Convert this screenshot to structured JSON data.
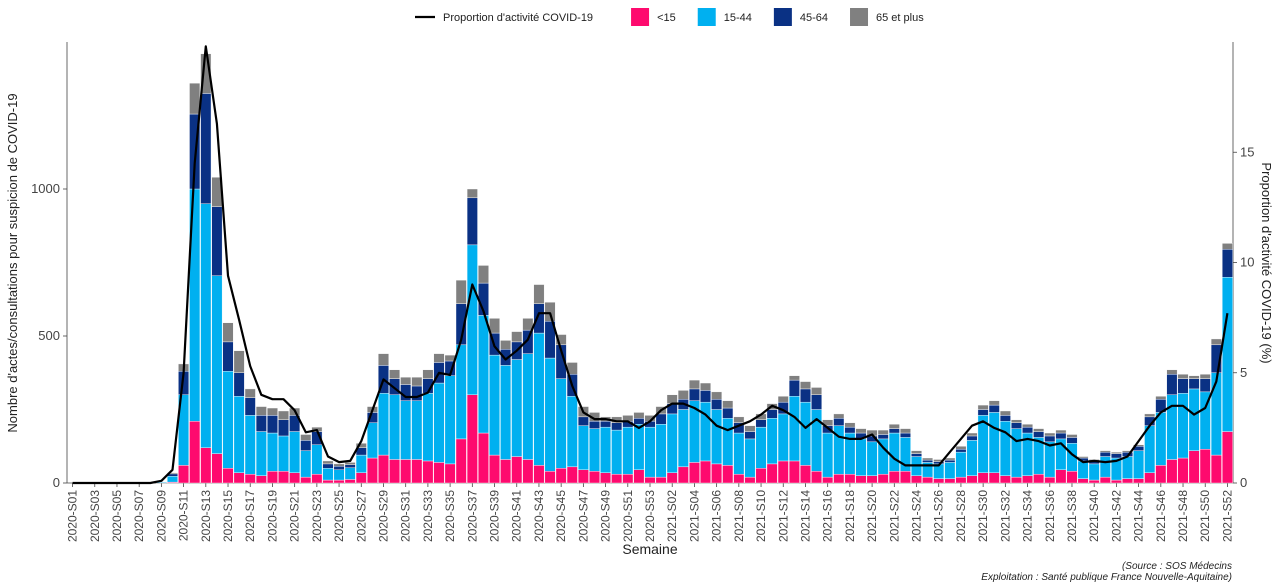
{
  "chart_data": {
    "type": "bar",
    "stacked": true,
    "x_label": "Semaine",
    "y_label": "Nombre d'actes/consultations pour suspicion de COVID-19",
    "y2_label": "Proportion d'activité COVID-19 (%)",
    "source": [
      "(Source : SOS Médecins",
      "Exploitation : Santé publique France Nouvelle-Aquitaine)"
    ],
    "ylim": [
      0,
      1500
    ],
    "yticks": [
      0,
      500,
      1000
    ],
    "y2lim": [
      0,
      20
    ],
    "y2ticks": [
      0,
      5,
      10,
      15
    ],
    "grid": false,
    "legend": "top",
    "categories": [
      "2020-S01",
      null,
      "2020-S03",
      null,
      "2020-S05",
      null,
      "2020-S07",
      null,
      "2020-S09",
      null,
      "2020-S11",
      null,
      "2020-S13",
      null,
      "2020-S15",
      null,
      "2020-S17",
      null,
      "2020-S19",
      null,
      "2020-S21",
      null,
      "2020-S23",
      null,
      "2020-S25",
      null,
      "2020-S27",
      null,
      "2020-S29",
      null,
      "2020-S31",
      null,
      "2020-S33",
      null,
      "2020-S35",
      null,
      "2020-S37",
      null,
      "2020-S39",
      null,
      "2020-S41",
      null,
      "2020-S43",
      null,
      "2020-S45",
      null,
      "2020-S47",
      null,
      "2020-S49",
      null,
      "2020-S51",
      null,
      "2020-S53",
      null,
      "2021-S02",
      null,
      "2021-S04",
      null,
      "2021-S06",
      null,
      "2021-S08",
      null,
      "2021-S10",
      null,
      "2021-S12",
      null,
      "2021-S14",
      null,
      "2021-S16",
      null,
      "2021-S18",
      null,
      "2021-S20",
      null,
      "2021-S22",
      null,
      "2021-S24",
      null,
      "2021-S26",
      null,
      "2021-S28",
      null,
      "2021-S30",
      null,
      "2021-S32",
      null,
      "2021-S34",
      null,
      "2021-S36",
      null,
      "2021-S38",
      null,
      "2021-S40",
      null,
      "2021-S42",
      null,
      "2021-S44",
      null,
      "2021-S46",
      null,
      "2021-S48",
      null,
      "2021-S50",
      null,
      "2021-S52"
    ],
    "series": [
      {
        "name": "Proportion d'activité COVID-19",
        "type": "line",
        "axis": "y2",
        "color": "#000000",
        "values": [
          0,
          0,
          0,
          0,
          0,
          0,
          0,
          0,
          0.1,
          0.6,
          5,
          14.5,
          19.8,
          16.3,
          9.4,
          7.4,
          5.3,
          4.0,
          3.8,
          3.8,
          3.3,
          2.3,
          2.4,
          1.2,
          0.95,
          1.0,
          1.9,
          3.3,
          4.7,
          4.3,
          3.9,
          3.9,
          4.1,
          5.0,
          4.9,
          6.5,
          9.0,
          7.8,
          6.2,
          5.6,
          6.0,
          6.5,
          7.7,
          7.7,
          6.0,
          4.4,
          3.2,
          2.9,
          2.9,
          2.8,
          2.8,
          2.5,
          2.8,
          3.3,
          3.6,
          3.6,
          3.4,
          3.1,
          2.6,
          2.4,
          2.6,
          2.8,
          3.1,
          3.5,
          3.3,
          3.0,
          2.5,
          2.9,
          2.5,
          2.1,
          2.0,
          2.0,
          2.2,
          1.6,
          1.1,
          0.8,
          0.8,
          0.8,
          0.8,
          1.4,
          2.0,
          2.6,
          2.8,
          2.5,
          2.3,
          1.9,
          2.0,
          1.9,
          1.7,
          1.8,
          1.3,
          0.95,
          1.0,
          0.95,
          1.0,
          1.2,
          1.9,
          2.6,
          3.2,
          3.5,
          3.5,
          3.1,
          3.4,
          4.6,
          7.7
        ]
      },
      {
        "name": "<15",
        "color": "#fe0a6e",
        "values": [
          0,
          0,
          0,
          0,
          0,
          0,
          0,
          0,
          0,
          3,
          60,
          210,
          120,
          100,
          50,
          35,
          30,
          25,
          40,
          40,
          35,
          20,
          30,
          10,
          10,
          12,
          35,
          85,
          95,
          80,
          80,
          80,
          75,
          70,
          65,
          150,
          300,
          170,
          95,
          80,
          90,
          80,
          60,
          40,
          50,
          55,
          45,
          40,
          35,
          30,
          30,
          45,
          20,
          20,
          35,
          55,
          70,
          75,
          65,
          60,
          30,
          20,
          50,
          65,
          75,
          75,
          60,
          40,
          20,
          30,
          30,
          25,
          25,
          30,
          40,
          40,
          25,
          20,
          15,
          15,
          20,
          25,
          35,
          35,
          25,
          20,
          25,
          30,
          20,
          45,
          40,
          15,
          10,
          20,
          10,
          15,
          15,
          35,
          60,
          80,
          85,
          110,
          115,
          95,
          175
        ]
      },
      {
        "name": "15-44",
        "color": "#00b0f0",
        "values": [
          0,
          0,
          0,
          0,
          0,
          0,
          0,
          0,
          3,
          20,
          240,
          790,
          830,
          605,
          330,
          260,
          200,
          150,
          130,
          120,
          140,
          90,
          100,
          40,
          35,
          40,
          60,
          120,
          210,
          220,
          200,
          200,
          230,
          270,
          300,
          320,
          510,
          400,
          340,
          320,
          330,
          360,
          450,
          385,
          305,
          240,
          150,
          145,
          155,
          150,
          160,
          155,
          170,
          180,
          200,
          195,
          210,
          200,
          185,
          160,
          140,
          130,
          140,
          155,
          160,
          220,
          215,
          210,
          150,
          165,
          140,
          125,
          115,
          120,
          130,
          115,
          65,
          50,
          50,
          55,
          85,
          120,
          195,
          205,
          185,
          165,
          145,
          125,
          120,
          105,
          95,
          60,
          55,
          70,
          75,
          75,
          95,
          160,
          180,
          220,
          220,
          210,
          195,
          280,
          525
        ]
      },
      {
        "name": "45-64",
        "color": "#0a3184",
        "values": [
          0,
          0,
          0,
          0,
          0,
          0,
          0,
          0,
          1,
          8,
          80,
          255,
          375,
          235,
          100,
          80,
          60,
          55,
          60,
          55,
          55,
          35,
          45,
          15,
          12,
          10,
          25,
          35,
          95,
          55,
          55,
          50,
          50,
          70,
          50,
          140,
          160,
          110,
          75,
          55,
          60,
          80,
          100,
          125,
          115,
          75,
          30,
          25,
          20,
          25,
          20,
          20,
          20,
          35,
          35,
          35,
          40,
          40,
          35,
          35,
          35,
          25,
          25,
          30,
          40,
          55,
          45,
          50,
          25,
          25,
          20,
          20,
          20,
          15,
          15,
          15,
          10,
          8,
          8,
          8,
          10,
          15,
          20,
          25,
          20,
          20,
          20,
          20,
          20,
          20,
          20,
          10,
          10,
          15,
          15,
          15,
          15,
          30,
          45,
          70,
          50,
          35,
          45,
          95,
          95
        ]
      },
      {
        "name": "65 et plus",
        "color": "#808080",
        "values": [
          0,
          0,
          0,
          0,
          0,
          0,
          0,
          0,
          1,
          4,
          25,
          105,
          135,
          100,
          65,
          75,
          30,
          30,
          25,
          30,
          25,
          20,
          15,
          10,
          8,
          8,
          15,
          20,
          40,
          30,
          25,
          30,
          30,
          30,
          20,
          80,
          30,
          60,
          50,
          30,
          35,
          40,
          65,
          65,
          35,
          40,
          35,
          30,
          15,
          20,
          20,
          20,
          20,
          25,
          30,
          30,
          30,
          25,
          25,
          25,
          20,
          20,
          20,
          20,
          20,
          15,
          25,
          25,
          20,
          15,
          15,
          15,
          20,
          15,
          15,
          15,
          10,
          7,
          7,
          7,
          10,
          10,
          15,
          15,
          15,
          10,
          10,
          10,
          10,
          10,
          10,
          5,
          5,
          5,
          5,
          5,
          5,
          10,
          10,
          15,
          15,
          10,
          15,
          20,
          20
        ]
      }
    ]
  }
}
